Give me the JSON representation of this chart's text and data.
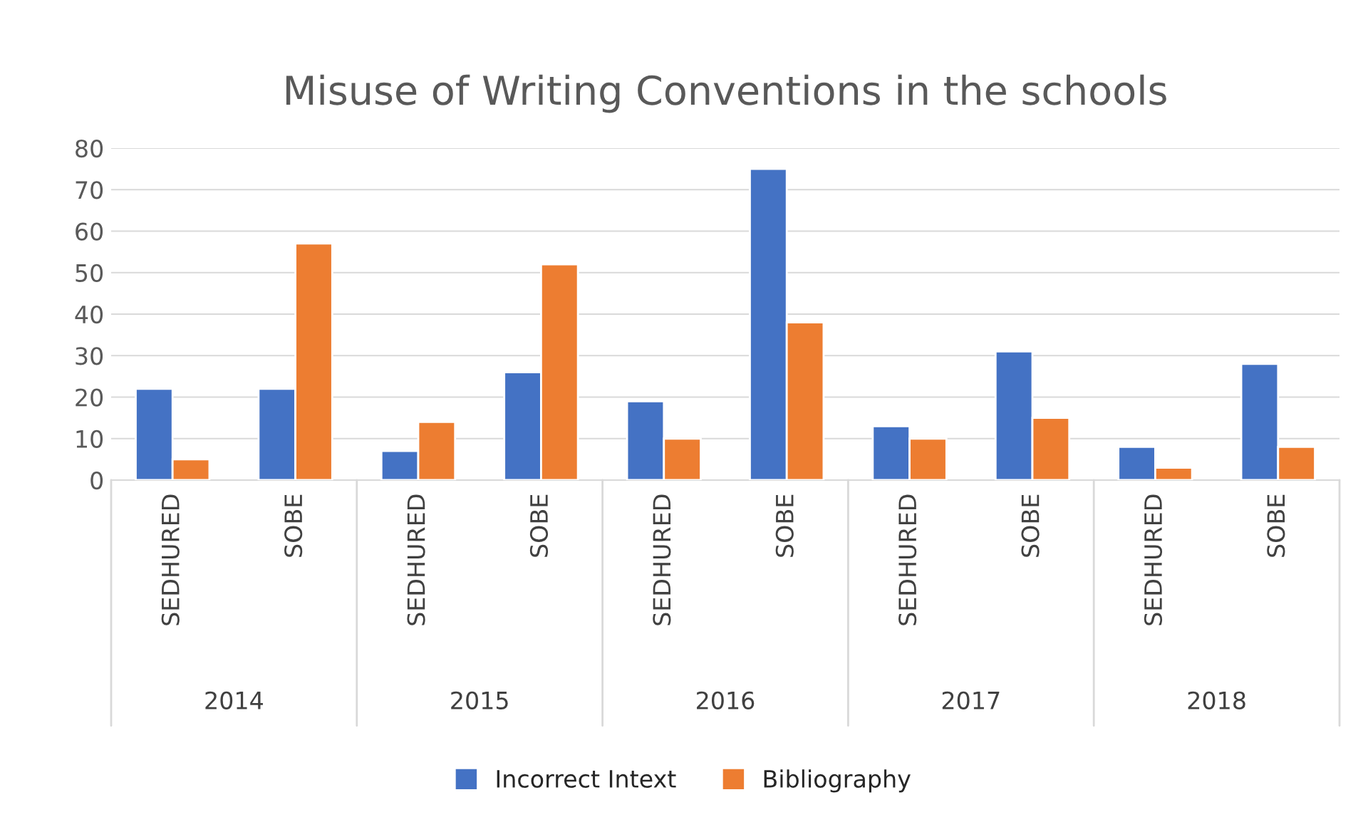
{
  "chart_data": {
    "type": "bar",
    "title": "Misuse of Writing Conventions in the schools",
    "categories": [
      "SEDHURED",
      "SOBE",
      "SEDHURED",
      "SOBE",
      "SEDHURED",
      "SOBE",
      "SEDHURED",
      "SOBE",
      "SEDHURED",
      "SOBE"
    ],
    "series": [
      {
        "name": "Incorrect Intext",
        "color": "#4472c4",
        "values": [
          22,
          22,
          7,
          26,
          19,
          75,
          13,
          31,
          8,
          28
        ]
      },
      {
        "name": "Bibliography",
        "color": "#ed7d31",
        "values": [
          5,
          57,
          14,
          52,
          10,
          38,
          10,
          15,
          3,
          8
        ]
      }
    ],
    "annotations": [
      "2014",
      "2015",
      "2016",
      "2017",
      "2018"
    ],
    "ylim": [
      0,
      80
    ],
    "yticks": [
      0,
      10,
      20,
      30,
      40,
      50,
      60,
      70,
      80
    ],
    "grid": "y",
    "legend": "bottom"
  }
}
